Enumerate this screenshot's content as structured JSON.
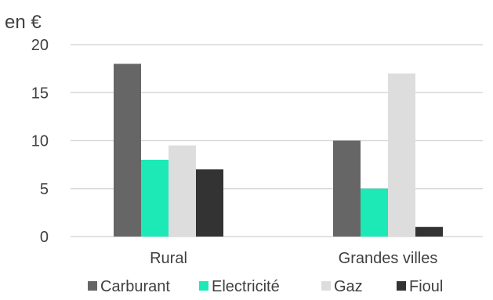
{
  "chart_data": {
    "type": "bar",
    "title": "",
    "ylabel": "en €",
    "xlabel": "",
    "categories": [
      "Rural",
      "Grandes villes"
    ],
    "series": [
      {
        "name": "Carburant",
        "values": [
          18,
          10
        ],
        "color": "#666666"
      },
      {
        "name": "Electricité",
        "values": [
          8,
          5
        ],
        "color": "#1DE9B6"
      },
      {
        "name": "Gaz",
        "values": [
          9.5,
          17
        ],
        "color": "#DDDDDD"
      },
      {
        "name": "Fioul",
        "values": [
          7,
          1
        ],
        "color": "#333333"
      }
    ],
    "yticks": [
      "0",
      "5",
      "10",
      "15",
      "20"
    ],
    "ylim": [
      0,
      20
    ],
    "grid": true,
    "gridColor": "#D9D9D9",
    "legend": "bottom"
  }
}
